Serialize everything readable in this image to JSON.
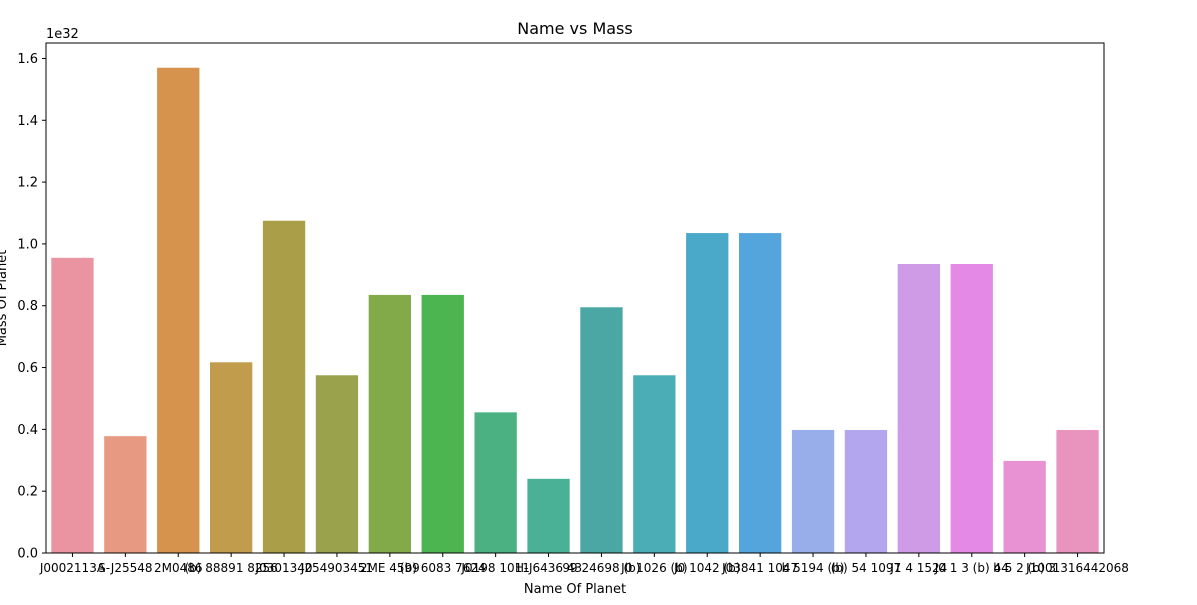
{
  "chart_data": {
    "type": "bar",
    "title": "Name vs Mass",
    "xlabel": "Name Of Planet",
    "ylabel": "Mass Of Planet",
    "y_offset_label": "1e32",
    "ylim": [
      0,
      1.65
    ],
    "yticks": [
      0.0,
      0.2,
      0.4,
      0.6,
      0.8,
      1.0,
      1.2,
      1.4,
      1.6
    ],
    "ytick_labels": [
      "0.0",
      "0.2",
      "0.4",
      "0.6",
      "0.8",
      "1.0",
      "1.2",
      "1.4",
      "1.6"
    ],
    "categories": [
      "J0002113A",
      "S-J25548",
      "2M0486",
      "(b) 88891 8256",
      "J0301340",
      "J254903451",
      "2ME 4599",
      "(b) 6083 7624",
      "J0198 1011",
      "H-J6436 43",
      "99 24698 (b)",
      "J0 1026 (b)",
      "J0 1042 (b)",
      "J03841 1047",
      "b 5194 (b)",
      "(b) 54 1097",
      "J1 4 1524",
      "J0 1 3 (b) 44",
      "b 5 2 (b) 3",
      "J1001316442068"
    ],
    "values": [
      0.955,
      0.378,
      1.57,
      0.617,
      1.075,
      0.575,
      0.835,
      0.835,
      0.455,
      0.24,
      0.795,
      0.575,
      1.035,
      1.035,
      0.398,
      0.398,
      0.935,
      0.935,
      0.298,
      0.398
    ],
    "colors": [
      "#eb94a1",
      "#e89981",
      "#d5934d",
      "#c29c4d",
      "#ab9e48",
      "#9aa24b",
      "#82aa48",
      "#4cb54f",
      "#4bb182",
      "#4ab196",
      "#4aa7a3",
      "#4badb6",
      "#4aa9c8",
      "#54a5dc",
      "#97aeea",
      "#b4a6ee",
      "#cf9be6",
      "#e48ae6",
      "#e892d3",
      "#e994be"
    ],
    "grid": false,
    "legend": "none"
  }
}
